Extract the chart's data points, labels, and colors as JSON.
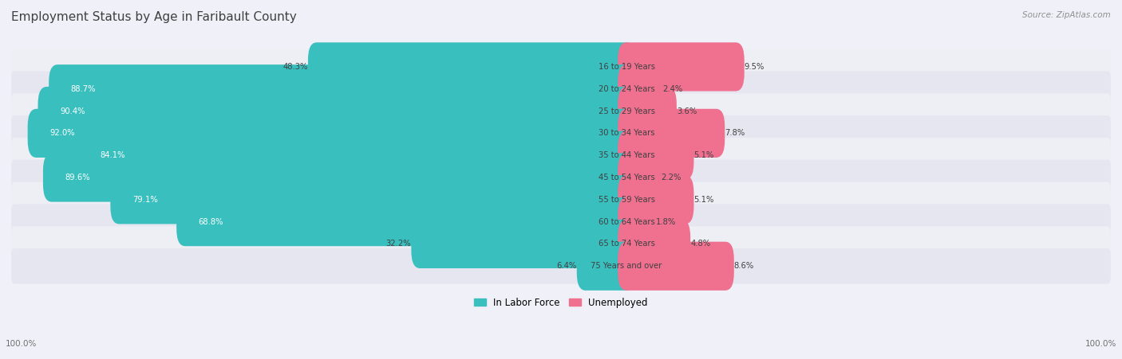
{
  "title": "Employment Status by Age in Faribault County",
  "source": "Source: ZipAtlas.com",
  "categories": [
    "16 to 19 Years",
    "20 to 24 Years",
    "25 to 29 Years",
    "30 to 34 Years",
    "35 to 44 Years",
    "45 to 54 Years",
    "55 to 59 Years",
    "60 to 64 Years",
    "65 to 74 Years",
    "75 Years and over"
  ],
  "labor_force": [
    48.3,
    88.7,
    90.4,
    92.0,
    84.1,
    89.6,
    79.1,
    68.8,
    32.2,
    6.4
  ],
  "unemployed": [
    9.5,
    2.4,
    3.6,
    7.8,
    5.1,
    2.2,
    5.1,
    1.8,
    4.8,
    8.6
  ],
  "labor_force_color": "#3abfbf",
  "unemployed_color": "#f07090",
  "row_color_odd": "#eeeef5",
  "row_color_even": "#e6e6f0",
  "background_color": "#f0f0f8",
  "title_color": "#404040",
  "axis_label_color": "#707070",
  "source_color": "#909090",
  "center_label_color": "#404040",
  "lf_text_color_inside": "#ffffff",
  "lf_text_color_outside": "#404040",
  "legend_labels": [
    "In Labor Force",
    "Unemployed"
  ],
  "left_axis_label": "100.0%",
  "right_axis_label": "100.0%"
}
